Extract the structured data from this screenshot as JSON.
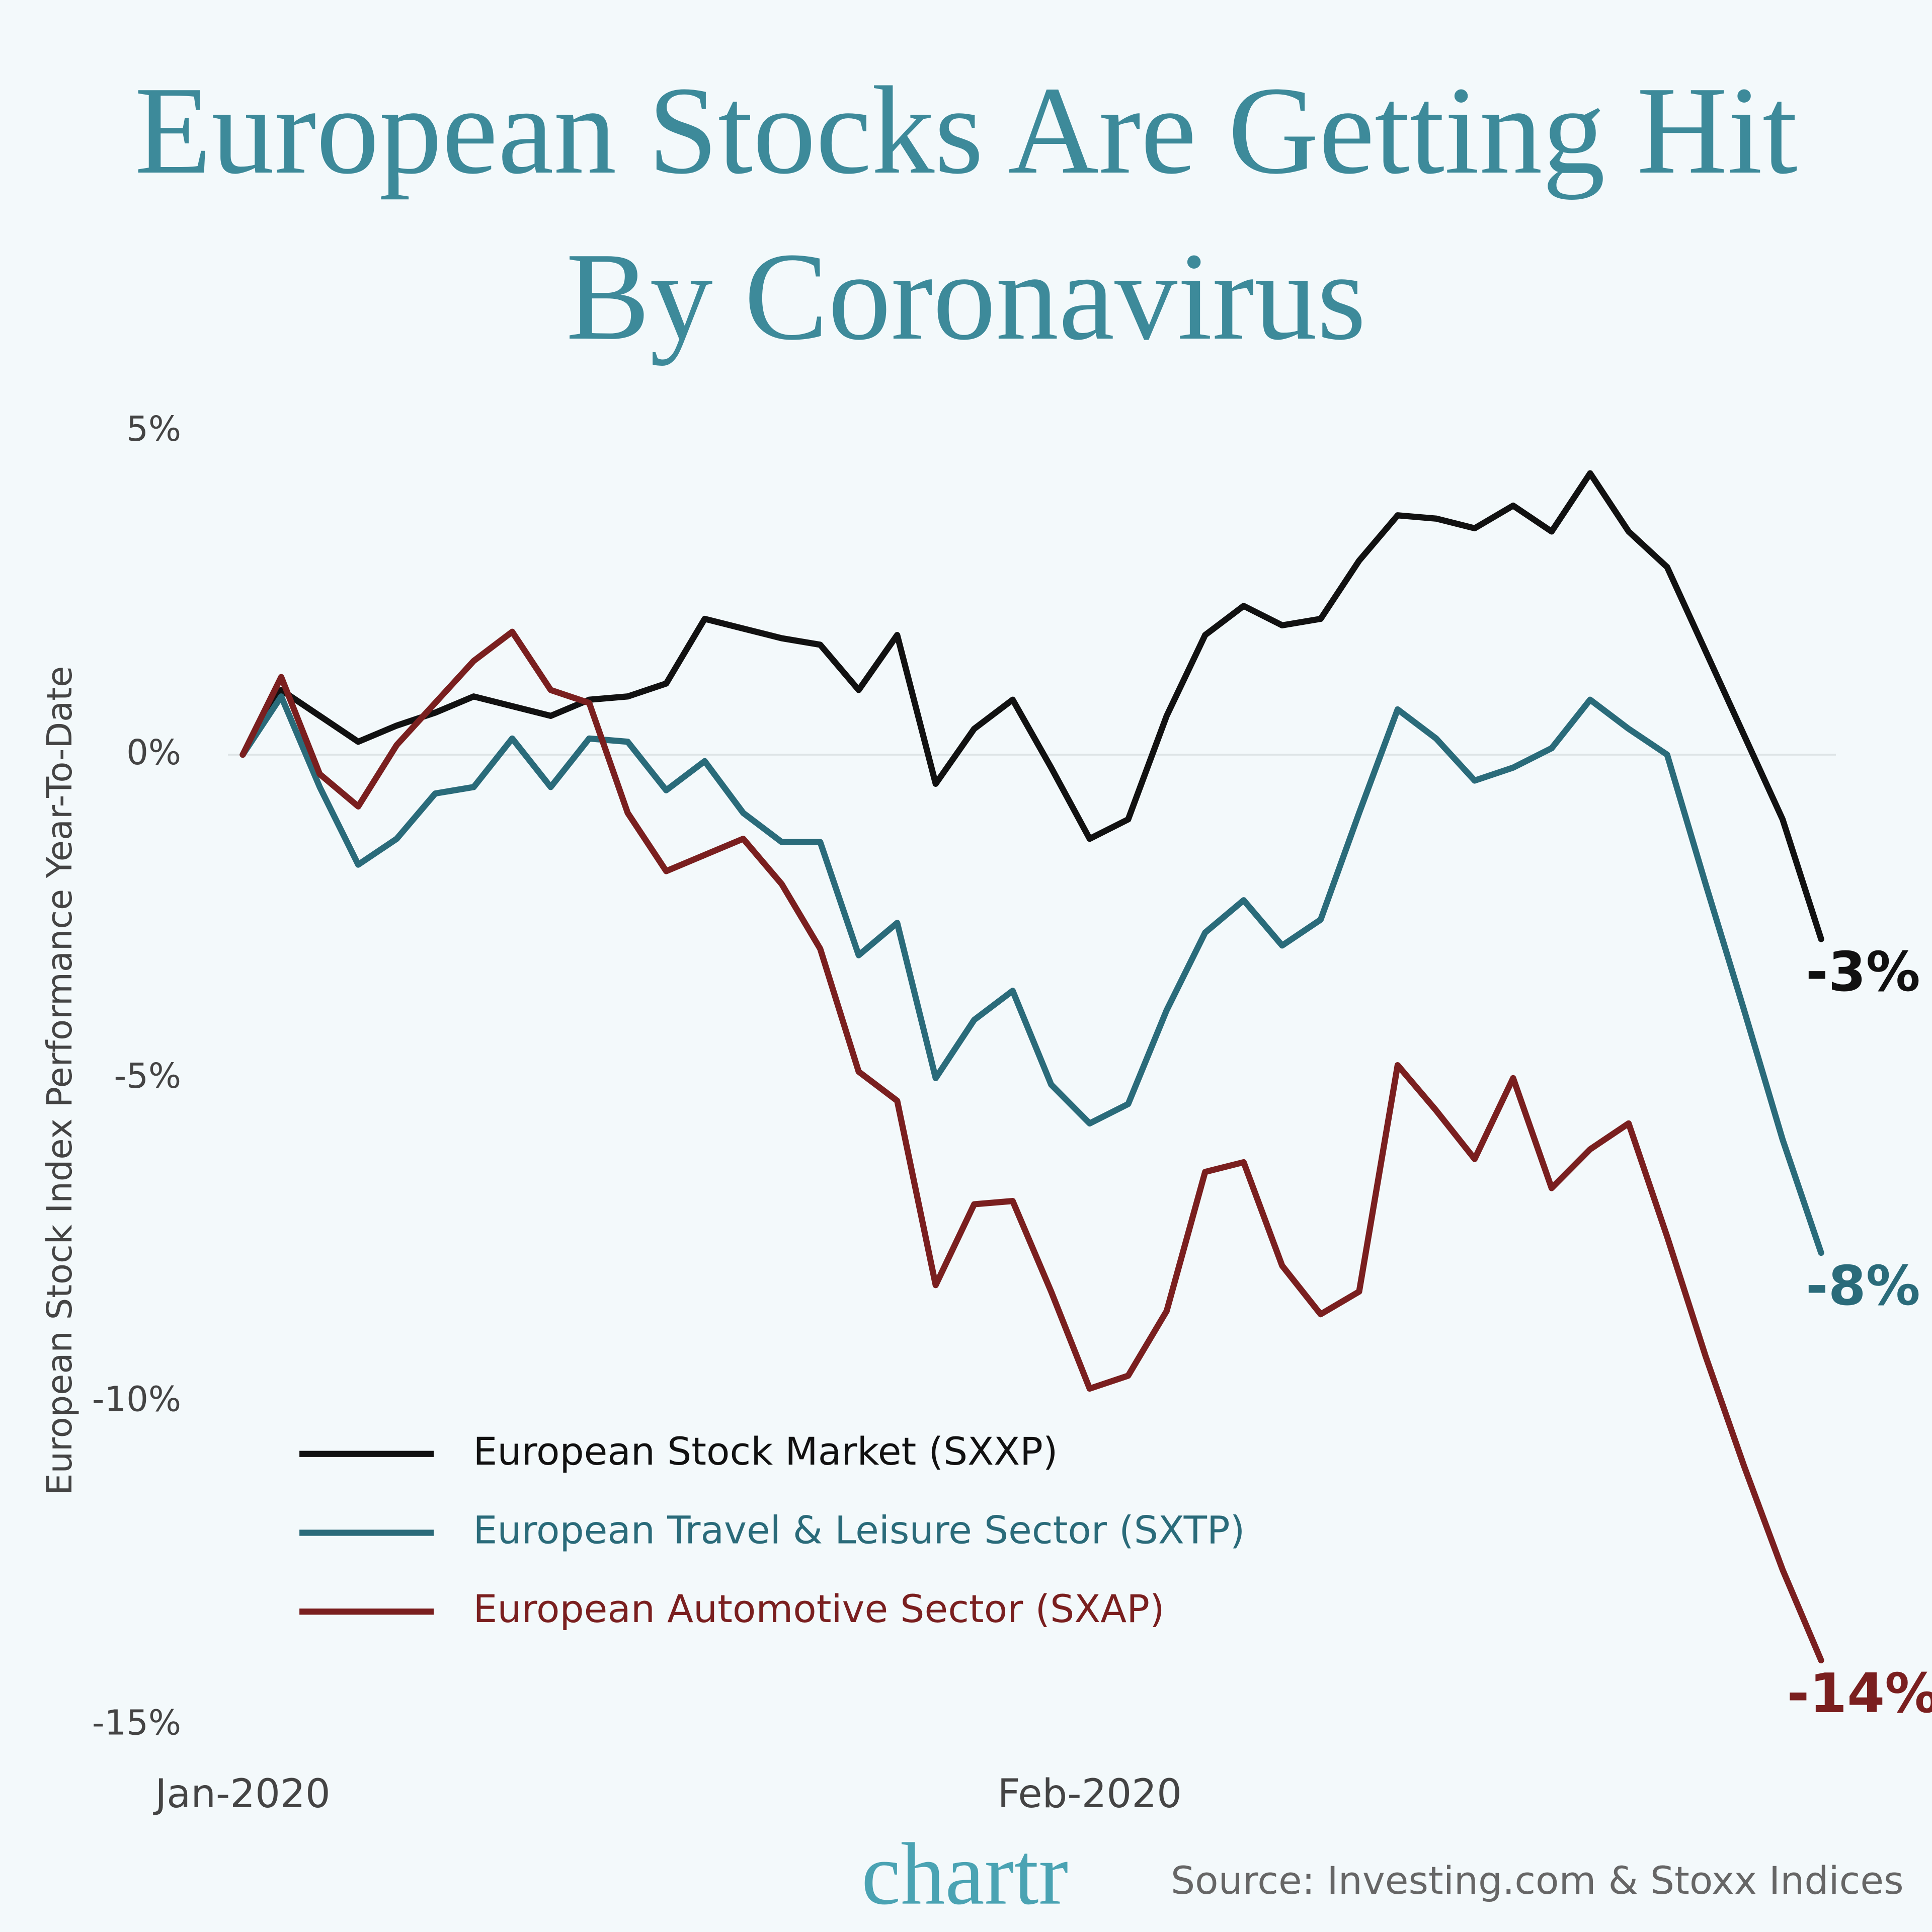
{
  "chart_data": {
    "type": "line",
    "title": "European Stocks Are Getting Hit By Coronavirus",
    "y_label": "European Stock Index Performance Year-To-Date",
    "categories": [
      "Jan-2020",
      null,
      null,
      null,
      null,
      null,
      null,
      null,
      null,
      null,
      null,
      null,
      null,
      null,
      null,
      null,
      null,
      null,
      null,
      null,
      null,
      null,
      "Feb-2020",
      null,
      null,
      null,
      null,
      null,
      null,
      null,
      null,
      null,
      null,
      null,
      null,
      null,
      null,
      null,
      null,
      null,
      null,
      null
    ],
    "series": [
      {
        "name": "European Stock Market (SXXP)",
        "color": "#111111",
        "values": [
          0,
          1.0,
          0.6,
          0.2,
          0.45,
          0.65,
          0.9,
          0.75,
          0.6,
          0.85,
          0.9,
          1.1,
          2.1,
          1.95,
          1.8,
          1.7,
          1.0,
          1.85,
          -0.45,
          0.4,
          0.85,
          -0.2,
          -1.3,
          -1.0,
          0.6,
          1.85,
          2.3,
          2.0,
          2.1,
          3.0,
          3.7,
          3.65,
          3.5,
          3.85,
          3.45,
          4.35,
          3.45,
          2.9,
          1.6,
          0.3,
          -1.0,
          -2.85
        ],
        "value_labels": [
          null,
          null,
          null,
          null,
          null,
          null,
          null,
          null,
          null,
          null,
          null,
          null,
          null,
          null,
          null,
          null,
          null,
          null,
          null,
          null,
          null,
          null,
          null,
          null,
          null,
          null,
          null,
          null,
          null,
          null,
          null,
          null,
          null,
          null,
          null,
          null,
          null,
          null,
          null,
          null,
          null,
          "-3%"
        ]
      },
      {
        "name": "European Travel & Leisure Sector (SXTP)",
        "color": "#2a6b7a",
        "values": [
          0,
          0.9,
          -0.5,
          -1.7,
          -1.3,
          -0.6,
          -0.5,
          0.25,
          -0.5,
          0.25,
          0.2,
          -0.55,
          -0.1,
          -0.9,
          -1.35,
          -1.35,
          -3.1,
          -2.6,
          -5.0,
          -4.1,
          -3.65,
          -5.1,
          -5.7,
          -5.4,
          -3.95,
          -2.75,
          -2.25,
          -2.95,
          -2.55,
          -0.9,
          0.7,
          0.25,
          -0.4,
          -0.2,
          0.1,
          0.85,
          0.4,
          0,
          -2.0,
          -3.95,
          -5.95,
          -7.7
        ],
        "value_labels": [
          null,
          null,
          null,
          null,
          null,
          null,
          null,
          null,
          null,
          null,
          null,
          null,
          null,
          null,
          null,
          null,
          null,
          null,
          null,
          null,
          null,
          null,
          null,
          null,
          null,
          null,
          null,
          null,
          null,
          null,
          null,
          null,
          null,
          null,
          null,
          null,
          null,
          null,
          null,
          null,
          null,
          "-8%"
        ]
      },
      {
        "name": "European Automotive Sector (SXAP)",
        "color": "#7a1f1f",
        "values": [
          0,
          1.2,
          -0.3,
          -0.8,
          0.15,
          0.8,
          1.45,
          1.9,
          1.0,
          0.8,
          -0.9,
          -1.8,
          -1.55,
          -1.3,
          -2.0,
          -3.0,
          -4.9,
          -5.35,
          -8.2,
          -6.95,
          -6.9,
          -8.3,
          -9.8,
          -9.6,
          -8.6,
          -6.45,
          -6.3,
          -7.9,
          -8.65,
          -8.3,
          -4.8,
          -5.5,
          -6.25,
          -5.0,
          -6.7,
          -6.1,
          -5.7,
          -7.45,
          -9.3,
          -11.0,
          -12.6,
          -14.0
        ],
        "value_labels": [
          null,
          null,
          null,
          null,
          null,
          null,
          null,
          null,
          null,
          null,
          null,
          null,
          null,
          null,
          null,
          null,
          null,
          null,
          null,
          null,
          null,
          null,
          null,
          null,
          null,
          null,
          null,
          null,
          null,
          null,
          null,
          null,
          null,
          null,
          null,
          null,
          null,
          null,
          null,
          null,
          null,
          "-14%"
        ]
      }
    ],
    "ylim": [
      -15,
      5
    ],
    "yticks": [
      {
        "value": 5,
        "label": "5%"
      },
      {
        "value": 0,
        "label": "0%"
      },
      {
        "value": -5,
        "label": "-5%"
      },
      {
        "value": -10,
        "label": "-10%"
      },
      {
        "value": -15,
        "label": "-15%"
      }
    ],
    "grid": false,
    "reference_line": 0,
    "legend": "lower left",
    "brand": "chartr",
    "source": "Source: Investing.com & Stoxx Indices"
  }
}
